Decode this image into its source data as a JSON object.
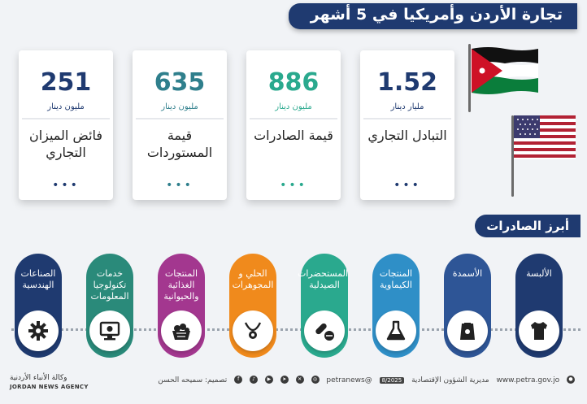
{
  "title": "تجارة الأردن وأمريكيا في 5 أشهر",
  "stats": [
    {
      "value": "1.52",
      "unit": "مليار دينار",
      "label": "التبادل التجاري",
      "dots": "•••"
    },
    {
      "value": "886",
      "unit": "مليون دينار",
      "label": "قيمة الصادرات",
      "dots": "•••"
    },
    {
      "value": "635",
      "unit": "مليون دينار",
      "label": "قيمة المستوردات",
      "dots": "•••"
    },
    {
      "value": "251",
      "unit": "مليون دينار",
      "label": "فائض الميزان التجاري",
      "dots": "•••"
    }
  ],
  "exports_title": "أبرز الصادرات",
  "exports": [
    {
      "label": "الألبسة",
      "icon": "tshirt-icon",
      "color": "#1f3a70"
    },
    {
      "label": "الأسمدة",
      "icon": "fertilizer-bag-icon",
      "color": "#2e5596"
    },
    {
      "label": "المنتجات الكيماوية",
      "icon": "flask-icon",
      "color": "#2f8fc7"
    },
    {
      "label": "المستحضرات الصيدلية",
      "icon": "pills-icon",
      "color": "#2aa98e"
    },
    {
      "label": "الحلي و المجوهرات",
      "icon": "necklace-icon",
      "color": "#f08a1c"
    },
    {
      "label": "المنتجات الغذائية والحيوانية",
      "icon": "food-basket-icon",
      "color": "#a3378f"
    },
    {
      "label": "خدمات تكنولوجيا المعلومات",
      "icon": "computer-icon",
      "color": "#2a8a7a"
    },
    {
      "label": "الصناعات الهندسية",
      "icon": "gear-icon",
      "color": "#1f3a70"
    }
  ],
  "colors": {
    "navy": "#1f3a70",
    "teal": "#2f7f8c",
    "green": "#2aa98e"
  },
  "footer": {
    "agency_ar": "وكالة الأنباء الأردنية",
    "agency_en": "JORDAN NEWS AGENCY",
    "website": "www.petra.gov.jo",
    "department": "مديرية الشؤون الإقتصادية",
    "badge": "8/2025",
    "handle": "@petranews",
    "design": "تصميم: سميحه الحسن"
  }
}
